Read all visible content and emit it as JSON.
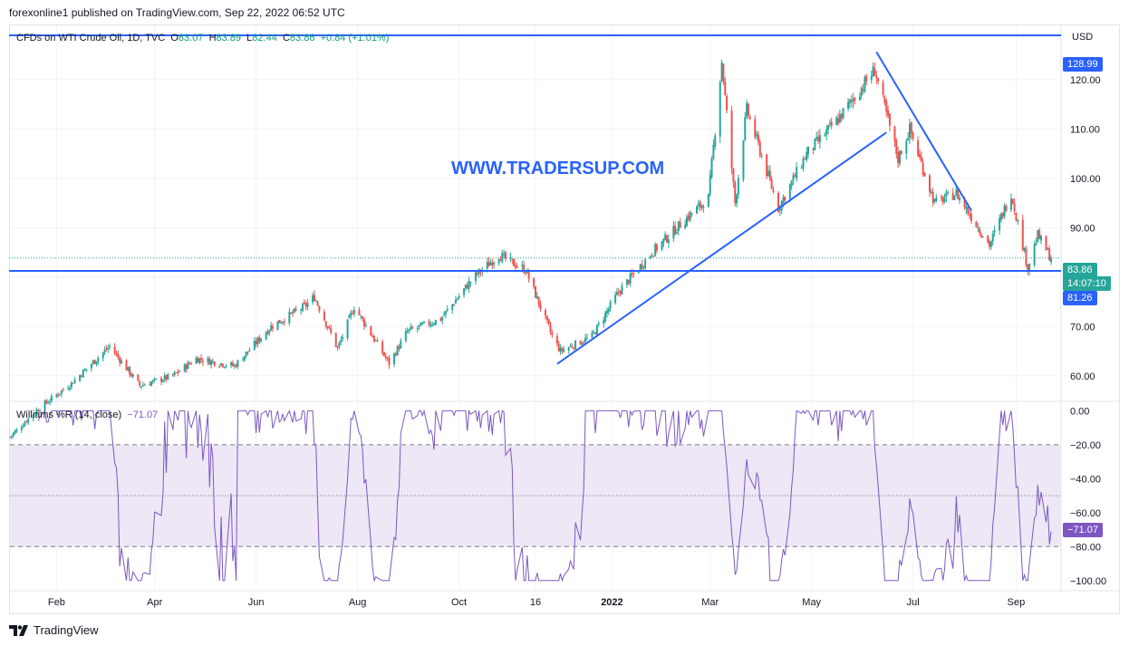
{
  "header": {
    "text": "forexonline1 published on TradingView.com, Sep 22, 2022 06:52 UTC"
  },
  "legend": {
    "symbol": "CFDs on WTI Crude Oil, 1D, TVC",
    "o_label": "O",
    "o": "83.07",
    "h_label": "H",
    "h": "83.89",
    "l_label": "L",
    "l": "82.44",
    "c_label": "C",
    "c": "83.86",
    "change": "+0.84 (+1.01%)"
  },
  "watermark": "WWW.TRADERSUP.COM",
  "currency": "USD",
  "indicator": {
    "label": "Williams %R (14, close)",
    "value": "−71.07"
  },
  "price_tags": {
    "high_line": "128.99",
    "last": "83.86",
    "countdown": "14:07:10",
    "support_line": "81.26"
  },
  "wr_tag": "−71.07",
  "footer": {
    "brand": "TradingView"
  },
  "colors": {
    "up": "#26a69a",
    "down": "#ef5350",
    "line": "#2962ff",
    "wr": "#7e57c2",
    "band": "#ede7f6"
  },
  "chart_data": [
    {
      "type": "candlestick",
      "title": "CFDs on WTI Crude Oil, 1D, TVC",
      "ylabel": "USD",
      "yticks": [
        60,
        70,
        80,
        90,
        100,
        110,
        120
      ],
      "ytick_labels": [
        "60.00",
        "70.00",
        "80.00",
        "90.00",
        "100.00",
        "110.00",
        "120.00"
      ],
      "ylim": [
        55,
        131
      ],
      "xticks": [
        "Feb",
        "Apr",
        "Jun",
        "Aug",
        "Oct",
        "16",
        "2022",
        "Mar",
        "May",
        "Jul",
        "Sep"
      ],
      "horizontal_lines": [
        128.99,
        81.26
      ],
      "trendlines": [
        {
          "from": [
            "2021-11-29",
            62.4
          ],
          "to": [
            "2022-06-15",
            109.3
          ]
        },
        {
          "from": [
            "2022-06-09",
            125.6
          ],
          "to": [
            "2022-08-05",
            93.5
          ]
        }
      ],
      "price_path": [
        [
          "2021-01-04",
          47.6
        ],
        [
          "2021-01-20",
          53.0
        ],
        [
          "2021-02-10",
          58.5
        ],
        [
          "2021-03-05",
          66.0
        ],
        [
          "2021-03-23",
          58.0
        ],
        [
          "2021-04-12",
          60.0
        ],
        [
          "2021-04-26",
          63.5
        ],
        [
          "2021-05-19",
          62.0
        ],
        [
          "2021-06-10",
          70.0
        ],
        [
          "2021-06-30",
          74.0
        ],
        [
          "2021-07-06",
          76.0
        ],
        [
          "2021-07-20",
          65.5
        ],
        [
          "2021-07-30",
          74.0
        ],
        [
          "2021-08-20",
          62.5
        ],
        [
          "2021-08-31",
          69.0
        ],
        [
          "2021-09-20",
          71.5
        ],
        [
          "2021-10-10",
          80.0
        ],
        [
          "2021-10-25",
          84.5
        ],
        [
          "2021-11-01",
          83.0
        ],
        [
          "2021-11-10",
          81.5
        ],
        [
          "2021-11-26",
          68.0
        ],
        [
          "2021-12-01",
          65.0
        ],
        [
          "2021-12-20",
          68.0
        ],
        [
          "2022-01-05",
          77.0
        ],
        [
          "2022-01-25",
          85.0
        ],
        [
          "2022-02-15",
          92.0
        ],
        [
          "2022-02-28",
          96.0
        ],
        [
          "2022-03-08",
          123.7
        ],
        [
          "2022-03-16",
          95.0
        ],
        [
          "2022-03-23",
          114.0
        ],
        [
          "2022-04-11",
          94.0
        ],
        [
          "2022-04-28",
          105.0
        ],
        [
          "2022-05-17",
          112.0
        ],
        [
          "2022-06-08",
          122.0
        ],
        [
          "2022-06-22",
          104.0
        ],
        [
          "2022-06-29",
          110.0
        ],
        [
          "2022-07-14",
          95.0
        ],
        [
          "2022-07-27",
          97.0
        ],
        [
          "2022-08-16",
          86.5
        ],
        [
          "2022-08-29",
          97.0
        ],
        [
          "2022-09-08",
          81.9
        ],
        [
          "2022-09-14",
          88.5
        ],
        [
          "2022-09-22",
          83.86
        ]
      ],
      "last": {
        "open": 83.07,
        "high": 83.89,
        "low": 82.44,
        "close": 83.86
      }
    },
    {
      "type": "line",
      "title": "Williams %R (14, close)",
      "yticks": [
        0,
        -20,
        -40,
        -60,
        -80,
        -100
      ],
      "ytick_labels": [
        "0.00",
        "−20.00",
        "−40.00",
        "−60.00",
        "−80.00",
        "−100.00"
      ],
      "ylim": [
        -106,
        5
      ],
      "bands": [
        -20,
        -50,
        -80
      ],
      "last": -71.07
    }
  ]
}
